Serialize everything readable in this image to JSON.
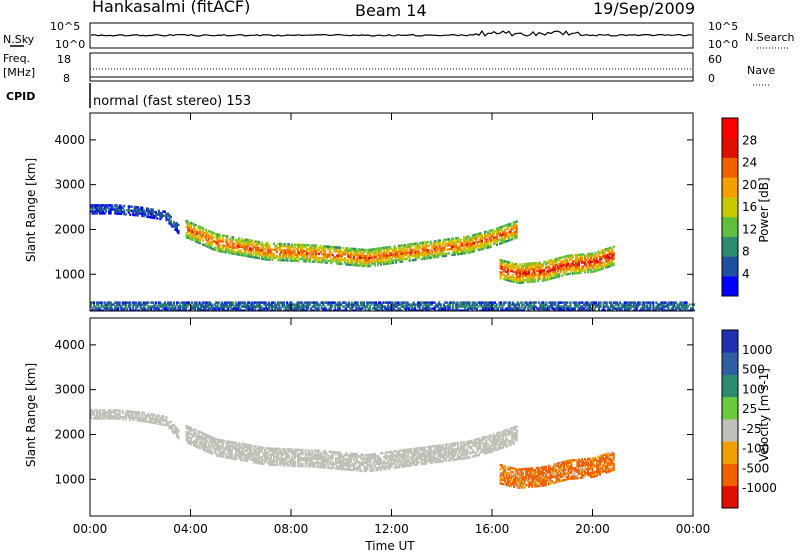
{
  "header": {
    "station": "Hankasalmi (fitACF)",
    "beam": "Beam 14",
    "date": "19/Sep/2009"
  },
  "top_panels": {
    "nsky_label": "N.Sky",
    "nsearch_label": "N.Search",
    "noise_ticks": [
      "10^5",
      "10^0"
    ],
    "freq_label": "Freq.",
    "freq_unit": "[MHz]",
    "freq_ticks": [
      "18",
      "8"
    ],
    "nave_label": "Nave",
    "nave_ticks": [
      "60",
      "0"
    ],
    "cpid_label": "CPID",
    "cpid_text": "normal (fast stereo) 153"
  },
  "colors": {
    "power_scale": [
      "#0000ff",
      "#1f4fa0",
      "#2e8a6e",
      "#5fbf3f",
      "#c8c800",
      "#f3a000",
      "#f06000",
      "#e01000",
      "#ff0000"
    ],
    "velocity_scale": [
      "#2030b0",
      "#2f5fa0",
      "#2e8a6e",
      "#6ccb3c",
      "#c0c0b8",
      "#f0a000",
      "#f06000",
      "#e01000",
      "#ff0000"
    ]
  },
  "chart_data": [
    {
      "type": "heatmap",
      "panel": "power",
      "ylabel": "Slant Range [km]",
      "ylim": [
        180,
        4600
      ],
      "yticks": [
        1000,
        2000,
        3000,
        4000
      ],
      "xlim": [
        0,
        24
      ],
      "colorbar": {
        "label": "Power [dB]",
        "ticks": [
          "4",
          "8",
          "12",
          "16",
          "20",
          "24",
          "28"
        ],
        "range": [
          0,
          32
        ]
      },
      "bands": [
        {
          "x": [
            0,
            1,
            2,
            3,
            3.5
          ],
          "range": [
            2450,
            2450,
            2400,
            2300,
            2000
          ],
          "width": 220,
          "value": 6
        },
        {
          "x": [
            3.8,
            5,
            7,
            9,
            11,
            13,
            15,
            16,
            17
          ],
          "range": [
            2000,
            1700,
            1500,
            1450,
            1350,
            1500,
            1650,
            1800,
            2000
          ],
          "width": 380,
          "value": 24
        },
        {
          "x": [
            16.3,
            17,
            18,
            19,
            20,
            20.8
          ],
          "range": [
            1100,
            1000,
            1050,
            1200,
            1250,
            1400
          ],
          "width": 420,
          "value": 27
        },
        {
          "x": [
            0,
            6,
            12,
            18,
            24
          ],
          "range": [
            280,
            280,
            280,
            280,
            280
          ],
          "width": 220,
          "value": 8
        }
      ]
    },
    {
      "type": "heatmap",
      "panel": "velocity",
      "ylabel": "Slant Range [km]",
      "xlabel": "Time UT",
      "ylim": [
        180,
        4600
      ],
      "yticks": [
        1000,
        2000,
        3000,
        4000
      ],
      "xlim": [
        0,
        24
      ],
      "xticks": [
        "00:00",
        "04:00",
        "08:00",
        "12:00",
        "16:00",
        "20:00",
        "00:00"
      ],
      "colorbar": {
        "label": "Velocity [m s-1]",
        "ticks": [
          "1000",
          "500",
          "100",
          "25",
          "-25",
          "-100",
          "-500",
          "-1000"
        ]
      },
      "bands": [
        {
          "x": [
            0,
            1,
            2,
            3,
            3.5
          ],
          "range": [
            2450,
            2450,
            2400,
            2300,
            2000
          ],
          "width": 220,
          "value": 0
        },
        {
          "x": [
            3.8,
            5,
            7,
            9,
            11,
            13,
            15,
            16,
            17
          ],
          "range": [
            2000,
            1700,
            1500,
            1450,
            1350,
            1500,
            1650,
            1800,
            2000
          ],
          "width": 380,
          "value": 0
        },
        {
          "x": [
            16.3,
            17,
            18,
            19,
            20,
            20.8
          ],
          "range": [
            1100,
            1000,
            1050,
            1200,
            1250,
            1400
          ],
          "width": 420,
          "value": -150
        }
      ]
    }
  ]
}
